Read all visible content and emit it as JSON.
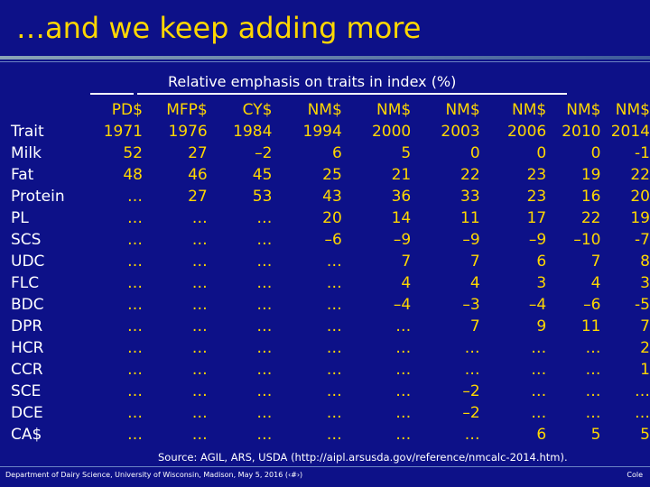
{
  "slide": {
    "title": "…and we keep adding more",
    "subtitle": "Relative emphasis on traits in index (%)",
    "source": "Source: AGIL, ARS, USDA (http://aipl.arsusda.gov/reference/nmcalc-2014.htm).",
    "footer_left": "Department of Dairy Science, University of Wisconsin, Madison, May 5, 2016 (‹#›)",
    "footer_right": "Cole"
  },
  "table": {
    "trait_header": "Trait",
    "columns": [
      {
        "name": "PD$",
        "year": "1971"
      },
      {
        "name": "MFP$",
        "year": "1976"
      },
      {
        "name": "CY$",
        "year": "1984"
      },
      {
        "name": "NM$",
        "year": "1994"
      },
      {
        "name": "NM$",
        "year": "2000"
      },
      {
        "name": "NM$",
        "year": "2003"
      },
      {
        "name": "NM$",
        "year": "2006"
      },
      {
        "name": "NM$",
        "year": "2010"
      },
      {
        "name": "NM$",
        "year": "2014"
      }
    ],
    "rows": [
      {
        "trait": "Milk",
        "values": [
          "52",
          "27",
          "–2",
          "6",
          "5",
          "0",
          "0",
          "0",
          "-1"
        ]
      },
      {
        "trait": "Fat",
        "values": [
          "48",
          "46",
          "45",
          "25",
          "21",
          "22",
          "23",
          "19",
          "22"
        ]
      },
      {
        "trait": "Protein",
        "values": [
          "…",
          "27",
          "53",
          "43",
          "36",
          "33",
          "23",
          "16",
          "20"
        ]
      },
      {
        "trait": "PL",
        "values": [
          "…",
          "…",
          "…",
          "20",
          "14",
          "11",
          "17",
          "22",
          "19"
        ]
      },
      {
        "trait": "SCS",
        "values": [
          "…",
          "…",
          "…",
          "–6",
          "–9",
          "–9",
          "–9",
          "–10",
          "-7"
        ]
      },
      {
        "trait": "UDC",
        "values": [
          "…",
          "…",
          "…",
          "…",
          "7",
          "7",
          "6",
          "7",
          "8"
        ]
      },
      {
        "trait": "FLC",
        "values": [
          "…",
          "…",
          "…",
          "…",
          "4",
          "4",
          "3",
          "4",
          "3"
        ]
      },
      {
        "trait": "BDC",
        "values": [
          "…",
          "…",
          "…",
          "…",
          "–4",
          "–3",
          "–4",
          "–6",
          "-5"
        ]
      },
      {
        "trait": "DPR",
        "values": [
          "…",
          "…",
          "…",
          "…",
          "…",
          "7",
          "9",
          "11",
          "7"
        ]
      },
      {
        "trait": "HCR",
        "values": [
          "…",
          "…",
          "…",
          "…",
          "…",
          "…",
          "…",
          "…",
          "2"
        ]
      },
      {
        "trait": "CCR",
        "values": [
          "…",
          "…",
          "…",
          "…",
          "…",
          "…",
          "…",
          "…",
          "1"
        ]
      },
      {
        "trait": "SCE",
        "values": [
          "…",
          "…",
          "…",
          "…",
          "…",
          "–2",
          "…",
          "…",
          "…"
        ]
      },
      {
        "trait": "DCE",
        "values": [
          "…",
          "…",
          "…",
          "…",
          "…",
          "–2",
          "…",
          "…",
          "…"
        ]
      },
      {
        "trait": "CA$",
        "values": [
          "…",
          "…",
          "…",
          "…",
          "…",
          "…",
          "6",
          "5",
          "5"
        ]
      }
    ]
  },
  "colors": {
    "background": "#0d1188",
    "accent": "#ffd700",
    "text": "#ffffff"
  }
}
